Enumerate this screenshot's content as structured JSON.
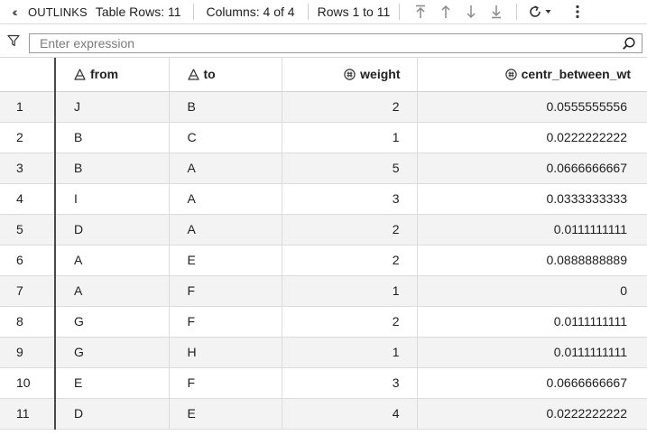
{
  "toolbar": {
    "collapse_icon": "double-chevron-left-icon",
    "name": "OUTLINKS",
    "table_rows": "Table Rows: 11",
    "columns": "Columns: 4 of 4",
    "rows_range": "Rows 1 to 11",
    "nav_icons": [
      "first-page-icon",
      "previous-page-icon",
      "next-page-icon",
      "last-page-icon"
    ],
    "refresh_icon": "refresh-icon",
    "menu_icon": "more-vertical-icon"
  },
  "filter": {
    "icon": "funnel-icon",
    "placeholder": "Enter expression",
    "value": "",
    "search_icon": "search-icon"
  },
  "table": {
    "columns": [
      {
        "label": "from",
        "type": "character",
        "icon": "character-type-icon"
      },
      {
        "label": "to",
        "type": "character",
        "icon": "character-type-icon"
      },
      {
        "label": "weight",
        "type": "numeric",
        "icon": "numeric-type-icon"
      },
      {
        "label": "centr_between_wt",
        "type": "numeric",
        "icon": "numeric-type-icon"
      }
    ],
    "rows": [
      {
        "n": "1",
        "from": "J",
        "to": "B",
        "weight": "2",
        "centr": "0.0555555556"
      },
      {
        "n": "2",
        "from": "B",
        "to": "C",
        "weight": "1",
        "centr": "0.0222222222"
      },
      {
        "n": "3",
        "from": "B",
        "to": "A",
        "weight": "5",
        "centr": "0.0666666667"
      },
      {
        "n": "4",
        "from": "I",
        "to": "A",
        "weight": "3",
        "centr": "0.0333333333"
      },
      {
        "n": "5",
        "from": "D",
        "to": "A",
        "weight": "2",
        "centr": "0.0111111111"
      },
      {
        "n": "6",
        "from": "A",
        "to": "E",
        "weight": "2",
        "centr": "0.0888888889"
      },
      {
        "n": "7",
        "from": "A",
        "to": "F",
        "weight": "1",
        "centr": "0"
      },
      {
        "n": "8",
        "from": "G",
        "to": "F",
        "weight": "2",
        "centr": "0.0111111111"
      },
      {
        "n": "9",
        "from": "G",
        "to": "H",
        "weight": "1",
        "centr": "0.0111111111"
      },
      {
        "n": "10",
        "from": "E",
        "to": "F",
        "weight": "3",
        "centr": "0.0666666667"
      },
      {
        "n": "11",
        "from": "D",
        "to": "E",
        "weight": "4",
        "centr": "0.0222222222"
      }
    ]
  },
  "colors": {
    "row_stripe": "#f3f3f3",
    "divider": "#4a4a4a",
    "icon_disabled": "#8a8a8a"
  }
}
